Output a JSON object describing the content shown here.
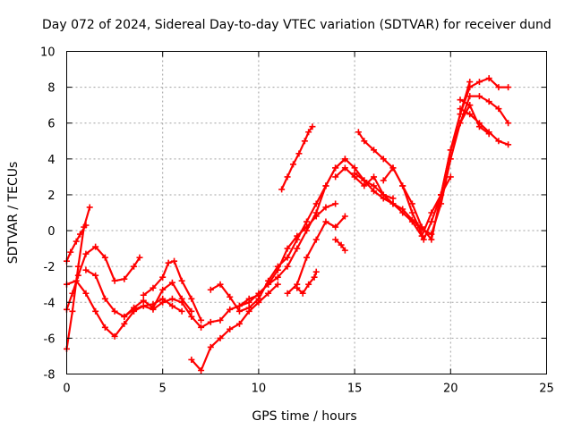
{
  "chart_data": {
    "type": "scatter",
    "title": "Day 072 of 2024, Sidereal Day-to-day VTEC variation (SDTVAR) for receiver dund",
    "xlabel": "GPS time / hours",
    "ylabel": "SDTVAR / TECUs",
    "xlim": [
      0,
      25
    ],
    "ylim": [
      -8,
      10
    ],
    "xticks": [
      0,
      5,
      10,
      15,
      20,
      25
    ],
    "yticks": [
      -8,
      -6,
      -4,
      -2,
      0,
      2,
      4,
      6,
      8,
      10
    ],
    "xtick_labels": [
      "0",
      "5",
      "10",
      "15",
      "20",
      "25"
    ],
    "ytick_labels": [
      "-8",
      "-6",
      "-4",
      "-2",
      "0",
      "2",
      "4",
      "6",
      "8",
      "10"
    ],
    "grid": true,
    "marker": "+",
    "color": "#ff0000",
    "series": [
      {
        "name": "track-1",
        "x": [
          0.0,
          0.3,
          0.6,
          0.9,
          1.2
        ],
        "y": [
          -6.6,
          -4.5,
          -2.0,
          0.2,
          1.3
        ]
      },
      {
        "name": "track-2",
        "x": [
          0.0,
          0.2,
          0.5,
          0.7,
          1.0
        ],
        "y": [
          -1.7,
          -1.2,
          -0.6,
          -0.2,
          0.3
        ]
      },
      {
        "name": "track-3",
        "x": [
          0.0,
          0.3,
          0.6,
          1.0,
          1.5,
          2.0,
          2.5,
          3.0,
          3.5,
          3.8
        ],
        "y": [
          -4.4,
          -3.5,
          -2.5,
          -1.3,
          -0.9,
          -1.5,
          -2.8,
          -2.7,
          -2.0,
          -1.5
        ]
      },
      {
        "name": "track-4",
        "x": [
          0.0,
          0.5,
          1.0,
          1.5,
          2.0,
          2.5,
          3.0,
          3.5,
          4.0,
          4.5,
          5.0,
          5.5,
          6.0
        ],
        "y": [
          -3.0,
          -2.8,
          -3.5,
          -4.5,
          -5.4,
          -5.9,
          -5.2,
          -4.5,
          -4.2,
          -4.1,
          -3.8,
          -4.2,
          -4.5
        ]
      },
      {
        "name": "track-5",
        "x": [
          1.0,
          1.5,
          2.0,
          2.5,
          3.0,
          3.5,
          4.0,
          4.5,
          5.0,
          5.5,
          6.0,
          6.5
        ],
        "y": [
          -2.2,
          -2.5,
          -3.8,
          -4.5,
          -4.8,
          -4.3,
          -3.9,
          -4.3,
          -3.3,
          -2.9,
          -3.8,
          -4.5
        ]
      },
      {
        "name": "track-6",
        "x": [
          3.0,
          3.5,
          4.0,
          4.5,
          5.0,
          5.5,
          6.0,
          6.5,
          7.0,
          7.5,
          8.0,
          8.5,
          9.0,
          9.5,
          10.0
        ],
        "y": [
          -4.8,
          -4.4,
          -4.2,
          -4.4,
          -4.0,
          -3.8,
          -4.0,
          -4.8,
          -5.4,
          -5.1,
          -5.0,
          -4.4,
          -4.2,
          -3.8,
          -3.6
        ]
      },
      {
        "name": "track-7",
        "x": [
          4.0,
          4.5,
          5.0,
          5.3,
          5.6,
          6.0,
          6.5,
          7.0
        ],
        "y": [
          -3.6,
          -3.2,
          -2.6,
          -1.8,
          -1.7,
          -2.8,
          -3.8,
          -5.0
        ]
      },
      {
        "name": "track-8",
        "x": [
          6.5,
          7.0,
          7.5,
          8.0,
          8.5,
          9.0,
          9.5,
          10.0,
          10.5,
          11.0
        ],
        "y": [
          -7.2,
          -7.8,
          -6.5,
          -6.0,
          -5.5,
          -5.2,
          -4.5,
          -4.0,
          -3.5,
          -3.0
        ]
      },
      {
        "name": "track-9",
        "x": [
          7.5,
          8.0,
          8.5,
          9.0,
          9.5,
          10.0,
          10.5,
          11.0,
          11.5,
          12.0,
          12.5,
          13.0,
          13.5,
          14.0,
          14.5
        ],
        "y": [
          -3.3,
          -3.0,
          -3.7,
          -4.5,
          -4.3,
          -3.8,
          -2.8,
          -2.0,
          -1.5,
          -0.5,
          0.5,
          1.5,
          2.5,
          3.5,
          4.0
        ]
      },
      {
        "name": "track-10",
        "x": [
          9.0,
          9.5,
          10.0,
          10.5,
          11.0,
          11.5,
          12.0,
          12.5,
          13.0,
          13.5,
          14.0
        ],
        "y": [
          -4.2,
          -4.0,
          -3.5,
          -3.0,
          -2.2,
          -1.0,
          -0.3,
          0.2,
          0.8,
          1.3,
          1.5
        ]
      },
      {
        "name": "track-11",
        "x": [
          10.5,
          11.0,
          11.5,
          12.0,
          12.5,
          13.0,
          13.5,
          14.0,
          14.5,
          15.0,
          15.5,
          16.0,
          16.5,
          17.0
        ],
        "y": [
          -3.0,
          -2.6,
          -2.0,
          -1.0,
          0.0,
          1.0,
          2.5,
          3.5,
          4.0,
          3.5,
          2.8,
          2.5,
          2.0,
          1.8
        ]
      },
      {
        "name": "track-12",
        "x": [
          11.2,
          11.5,
          11.8,
          12.1,
          12.4,
          12.6,
          12.8
        ],
        "y": [
          2.3,
          3.0,
          3.7,
          4.3,
          5.0,
          5.5,
          5.8
        ]
      },
      {
        "name": "track-13",
        "x": [
          11.5,
          12.0,
          12.5,
          13.0,
          13.5,
          14.0,
          14.5
        ],
        "y": [
          -3.5,
          -3.0,
          -1.5,
          -0.5,
          0.5,
          0.2,
          0.8
        ]
      },
      {
        "name": "track-14",
        "x": [
          12.0,
          12.3,
          12.6,
          12.9,
          13.0
        ],
        "y": [
          -3.2,
          -3.5,
          -3.0,
          -2.6,
          -2.3
        ]
      },
      {
        "name": "track-15",
        "x": [
          14.0,
          14.5,
          15.0,
          15.5,
          16.0,
          16.5,
          17.0,
          17.5,
          18.0,
          18.5,
          19.0,
          19.5,
          20.0
        ],
        "y": [
          3.0,
          3.5,
          3.0,
          2.5,
          3.0,
          2.0,
          1.5,
          1.0,
          0.5,
          -0.3,
          1.0,
          2.0,
          3.0
        ]
      },
      {
        "name": "track-16",
        "x": [
          15.2,
          15.5,
          16.0,
          16.5,
          17.0,
          17.5,
          18.0,
          18.3,
          18.6,
          19.0,
          19.5,
          20.0,
          20.5,
          21.0,
          21.5,
          22.0,
          22.5,
          23.0
        ],
        "y": [
          5.5,
          5.0,
          4.5,
          4.0,
          3.5,
          2.5,
          1.0,
          0.3,
          -0.5,
          0.5,
          2.0,
          4.5,
          6.0,
          7.5,
          7.5,
          7.2,
          6.8,
          6.0
        ]
      },
      {
        "name": "track-17",
        "x": [
          15.0,
          15.5,
          16.0,
          16.5,
          17.0,
          17.5,
          18.0,
          18.5,
          19.0,
          19.5,
          20.0,
          20.5,
          21.0
        ],
        "y": [
          3.2,
          2.8,
          2.2,
          1.8,
          1.5,
          1.2,
          0.6,
          0.1,
          -0.2,
          1.5,
          4.0,
          6.0,
          7.0
        ]
      },
      {
        "name": "track-18",
        "x": [
          16.5,
          17.0,
          17.5,
          18.0,
          18.5,
          19.0,
          19.5,
          20.0,
          20.5,
          21.0
        ],
        "y": [
          2.8,
          3.5,
          2.5,
          1.5,
          0.2,
          -0.5,
          2.0,
          4.5,
          6.5,
          8.3
        ]
      },
      {
        "name": "track-19",
        "x": [
          20.5,
          21.0,
          21.5,
          22.0,
          22.5,
          23.0
        ],
        "y": [
          6.5,
          8.0,
          8.3,
          8.5,
          8.0,
          8.0
        ]
      },
      {
        "name": "track-20",
        "x": [
          20.5,
          21.0,
          21.5,
          22.0,
          22.5,
          23.0
        ],
        "y": [
          6.8,
          6.5,
          6.0,
          5.5,
          5.0,
          4.8
        ]
      },
      {
        "name": "track-21",
        "x": [
          20.5,
          21.0,
          21.5,
          22.0
        ],
        "y": [
          7.3,
          7.0,
          5.8,
          5.4
        ]
      },
      {
        "name": "track-22",
        "x": [
          14.0,
          14.3,
          14.5
        ],
        "y": [
          -0.5,
          -0.8,
          -1.1
        ]
      }
    ]
  }
}
